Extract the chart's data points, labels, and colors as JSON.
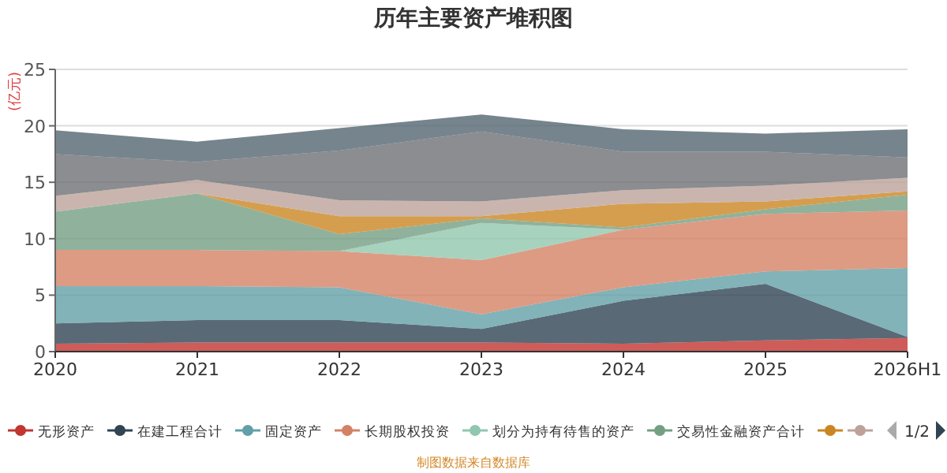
{
  "chart_data": {
    "type": "area",
    "stacked": true,
    "title": "历年主要资产堆积图",
    "ylabel": "(亿元)",
    "categories": [
      "2020",
      "2021",
      "2022",
      "2023",
      "2024",
      "2025",
      "2026H1"
    ],
    "ylim": [
      0,
      25
    ],
    "yticks": [
      0,
      5,
      10,
      15,
      20,
      25
    ],
    "grid": "y",
    "legend": "bottom",
    "marker": "none",
    "series": [
      {
        "name": "无形资产",
        "color": "#c23531",
        "values": [
          0.7,
          0.8,
          0.8,
          0.8,
          0.7,
          1.0,
          1.2
        ]
      },
      {
        "name": "在建工程合计",
        "color": "#2f4554",
        "values": [
          1.8,
          2.0,
          2.0,
          1.2,
          3.8,
          5.0,
          0.1
        ]
      },
      {
        "name": "固定资产",
        "color": "#61a0a8",
        "values": [
          3.3,
          3.0,
          2.9,
          1.3,
          1.2,
          1.1,
          6.1
        ]
      },
      {
        "name": "长期股权投资",
        "color": "#d48265",
        "values": [
          3.2,
          3.2,
          3.2,
          4.8,
          5.1,
          5.1,
          5.1
        ]
      },
      {
        "name": "划分为持有待售的资产",
        "color": "#91c7ae",
        "values": [
          0,
          0,
          0,
          3.3,
          0,
          0,
          0
        ]
      },
      {
        "name": "交易性金融资产合计",
        "color": "#749f83",
        "values": [
          3.4,
          5.0,
          1.5,
          0.4,
          0.2,
          0.4,
          1.4
        ]
      },
      {
        "color": "#ca8622",
        "values": [
          0,
          0,
          1.6,
          0.2,
          2.1,
          0.7,
          0.3
        ]
      },
      {
        "color": "#bda29a",
        "values": [
          1.4,
          1.2,
          1.4,
          1.3,
          1.2,
          1.4,
          1.2
        ]
      },
      {
        "color": "#6e7074",
        "values": [
          3.7,
          1.6,
          4.4,
          6.2,
          3.4,
          3.0,
          1.8
        ]
      },
      {
        "color": "#546570",
        "values": [
          2.1,
          1.8,
          2.0,
          1.5,
          2.0,
          1.6,
          2.5
        ]
      }
    ],
    "annotations": [
      "1/2",
      "制图数据来自数据库"
    ]
  }
}
